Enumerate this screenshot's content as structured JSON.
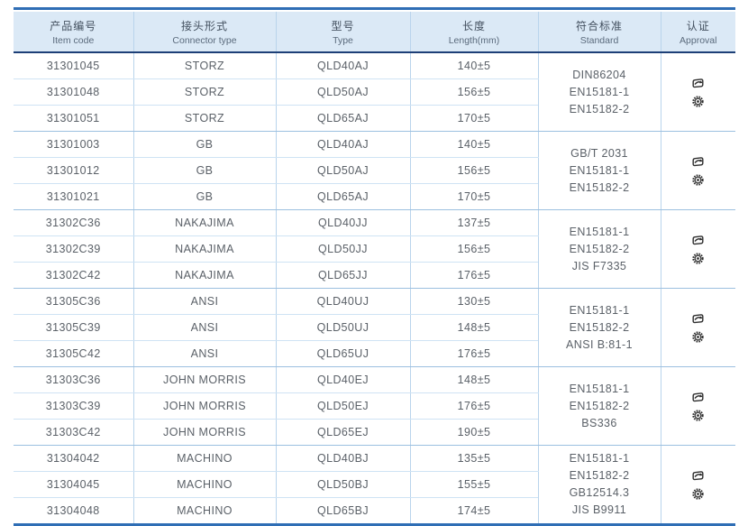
{
  "table": {
    "columns": [
      {
        "cn": "产品编号",
        "en": "Item code"
      },
      {
        "cn": "接头形式",
        "en": "Connector type"
      },
      {
        "cn": "型号",
        "en": "Type"
      },
      {
        "cn": "长度",
        "en": "Length(mm)"
      },
      {
        "cn": "符合标准",
        "en": "Standard"
      },
      {
        "cn": "认证",
        "en": "Approval"
      }
    ],
    "groups": [
      {
        "connector": "STORZ",
        "rows": [
          {
            "code": "31301045",
            "type": "QLD40AJ",
            "length": "140±5"
          },
          {
            "code": "31301048",
            "type": "QLD50AJ",
            "length": "156±5"
          },
          {
            "code": "31301051",
            "type": "QLD65AJ",
            "length": "170±5"
          }
        ],
        "standards": [
          "DIN86204",
          "EN15181-1",
          "EN15182-2"
        ],
        "approval_icons": [
          "certificate-stamp-icon",
          "gear-seal-icon"
        ]
      },
      {
        "connector": "GB",
        "rows": [
          {
            "code": "31301003",
            "type": "QLD40AJ",
            "length": "140±5"
          },
          {
            "code": "31301012",
            "type": "QLD50AJ",
            "length": "156±5"
          },
          {
            "code": "31301021",
            "type": "QLD65AJ",
            "length": "170±5"
          }
        ],
        "standards": [
          "GB/T 2031",
          "EN15181-1",
          "EN15182-2"
        ],
        "approval_icons": [
          "certificate-stamp-icon",
          "gear-seal-icon"
        ]
      },
      {
        "connector": "NAKAJIMA",
        "rows": [
          {
            "code": "31302C36",
            "type": "QLD40JJ",
            "length": "137±5"
          },
          {
            "code": "31302C39",
            "type": "QLD50JJ",
            "length": "156±5"
          },
          {
            "code": "31302C42",
            "type": "QLD65JJ",
            "length": "176±5"
          }
        ],
        "standards": [
          "EN15181-1",
          "EN15182-2",
          "JIS F7335"
        ],
        "approval_icons": [
          "certificate-stamp-icon",
          "gear-seal-icon"
        ]
      },
      {
        "connector": "ANSI",
        "rows": [
          {
            "code": "31305C36",
            "type": "QLD40UJ",
            "length": "130±5"
          },
          {
            "code": "31305C39",
            "type": "QLD50UJ",
            "length": "148±5"
          },
          {
            "code": "31305C42",
            "type": "QLD65UJ",
            "length": "176±5"
          }
        ],
        "standards": [
          "EN15181-1",
          "EN15182-2",
          "ANSI B:81-1"
        ],
        "approval_icons": [
          "certificate-stamp-icon",
          "gear-seal-icon"
        ]
      },
      {
        "connector": "JOHN MORRIS",
        "rows": [
          {
            "code": "31303C36",
            "type": "QLD40EJ",
            "length": "148±5"
          },
          {
            "code": "31303C39",
            "type": "QLD50EJ",
            "length": "176±5"
          },
          {
            "code": "31303C42",
            "type": "QLD65EJ",
            "length": "190±5"
          }
        ],
        "standards": [
          "EN15181-1",
          "EN15182-2",
          "BS336"
        ],
        "approval_icons": [
          "certificate-stamp-icon",
          "gear-seal-icon"
        ]
      },
      {
        "connector": "MACHINO",
        "rows": [
          {
            "code": "31304042",
            "type": "QLD40BJ",
            "length": "135±5"
          },
          {
            "code": "31304045",
            "type": "QLD50BJ",
            "length": "155±5"
          },
          {
            "code": "31304048",
            "type": "QLD65BJ",
            "length": "174±5"
          }
        ],
        "standards": [
          "EN15181-1",
          "EN15182-2",
          "GB12514.3",
          "JIS B9911"
        ],
        "approval_icons": [
          "certificate-stamp-icon",
          "gear-seal-icon"
        ]
      }
    ]
  },
  "colors": {
    "accent_blue": "#2f6eb5",
    "header_bg": "#dbe9f6",
    "header_rule": "#1d3f77",
    "grid_light": "#cfe3f4",
    "grid_group": "#9cc0e0",
    "icon": "#2e2e2e"
  }
}
